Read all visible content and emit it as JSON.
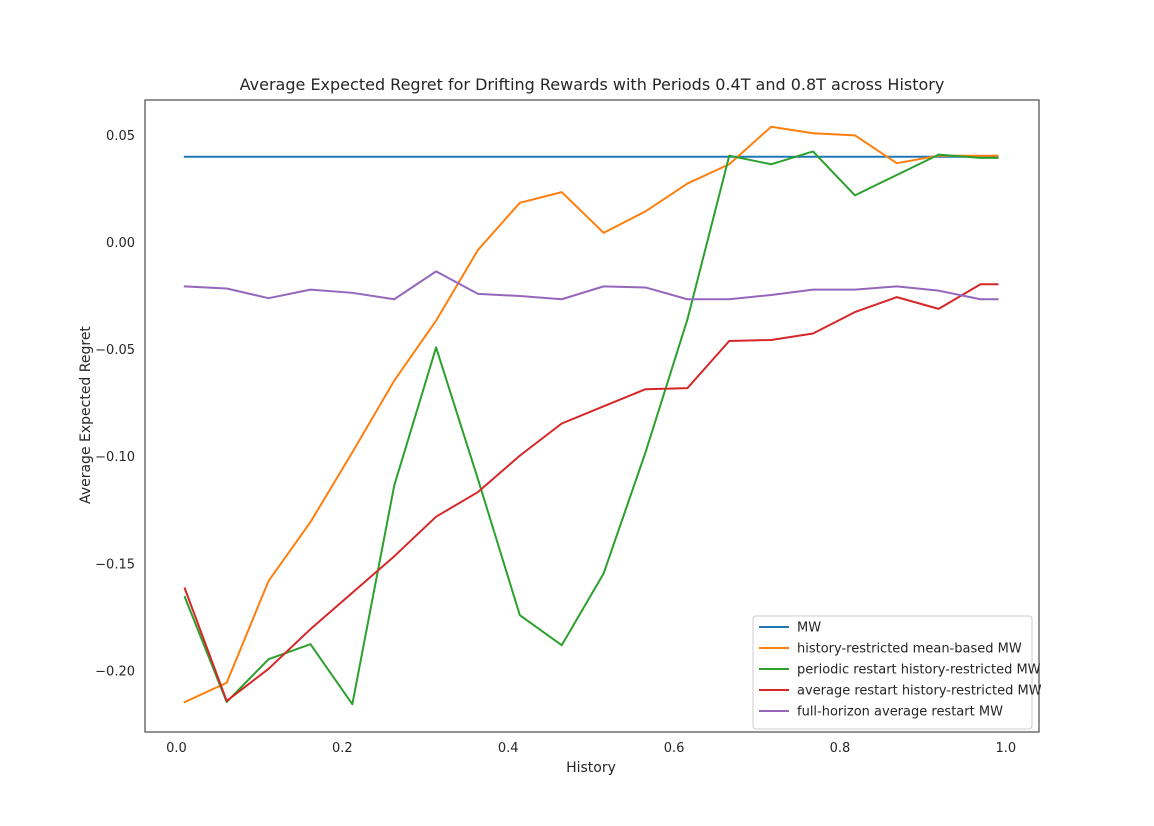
{
  "chart_data": {
    "type": "line",
    "title": "Average Expected Regret for Drifting Rewards with Periods 0.4T and 0.8T across History",
    "xlabel": "History",
    "ylabel": "Average Expected Regret",
    "xlim": [
      -0.038,
      1.04
    ],
    "ylim": [
      -0.2285,
      0.0665
    ],
    "x_ticks": [
      0.0,
      0.2,
      0.4,
      0.6,
      0.8,
      1.0
    ],
    "x_tick_labels": [
      "0.0",
      "0.2",
      "0.4",
      "0.6",
      "0.8",
      "1.0"
    ],
    "y_ticks": [
      -0.2,
      -0.15,
      -0.1,
      -0.05,
      0.0,
      0.05
    ],
    "y_tick_labels": [
      "−0.20",
      "−0.15",
      "−0.10",
      "−0.05",
      "0.00",
      "0.05"
    ],
    "grid": false,
    "legend_position": "lower-right",
    "x": [
      0.01,
      0.0605,
      0.111,
      0.1615,
      0.212,
      0.2625,
      0.313,
      0.3635,
      0.414,
      0.4645,
      0.515,
      0.5655,
      0.616,
      0.6665,
      0.717,
      0.7675,
      0.818,
      0.8685,
      0.919,
      0.9695,
      0.99
    ],
    "series": [
      {
        "name": "MW",
        "color": "#1f77b4",
        "values": [
          0.04,
          0.04,
          0.04,
          0.04,
          0.04,
          0.04,
          0.04,
          0.04,
          0.04,
          0.04,
          0.04,
          0.04,
          0.04,
          0.04,
          0.04,
          0.04,
          0.04,
          0.04,
          0.04,
          0.04,
          0.04
        ]
      },
      {
        "name": "history-restricted mean-based MW",
        "color": "#ff7f0e",
        "values": [
          -0.2145,
          -0.2055,
          -0.158,
          -0.1305,
          -0.098,
          -0.0645,
          -0.0365,
          -0.0035,
          0.0185,
          0.0235,
          0.0045,
          0.0145,
          0.0275,
          0.0365,
          0.054,
          0.051,
          0.05,
          0.037,
          0.0405,
          0.0405,
          0.0405
        ]
      },
      {
        "name": "periodic restart history-restricted MW",
        "color": "#2ca02c",
        "values": [
          -0.1655,
          -0.2145,
          -0.1945,
          -0.1875,
          -0.2155,
          -0.1135,
          -0.049,
          -0.1105,
          -0.174,
          -0.188,
          -0.1545,
          -0.098,
          -0.036,
          0.0405,
          0.0365,
          0.0425,
          0.022,
          0.0315,
          0.041,
          0.0395,
          0.0395
        ]
      },
      {
        "name": "average restart history-restricted MW",
        "color": "#d62728",
        "values": [
          -0.1615,
          -0.214,
          -0.199,
          -0.1805,
          -0.1635,
          -0.1465,
          -0.128,
          -0.1165,
          -0.0995,
          -0.0845,
          -0.0765,
          -0.0685,
          -0.068,
          -0.046,
          -0.0455,
          -0.0425,
          -0.0325,
          -0.0255,
          -0.031,
          -0.0195,
          -0.0195
        ]
      },
      {
        "name": "full-horizon average restart MW",
        "color": "#9467bd",
        "values": [
          -0.0205,
          -0.0215,
          -0.026,
          -0.022,
          -0.0235,
          -0.0265,
          -0.0135,
          -0.024,
          -0.025,
          -0.0265,
          -0.0205,
          -0.021,
          -0.0265,
          -0.0265,
          -0.0245,
          -0.022,
          -0.022,
          -0.0205,
          -0.0225,
          -0.0265,
          -0.0265
        ]
      }
    ]
  }
}
